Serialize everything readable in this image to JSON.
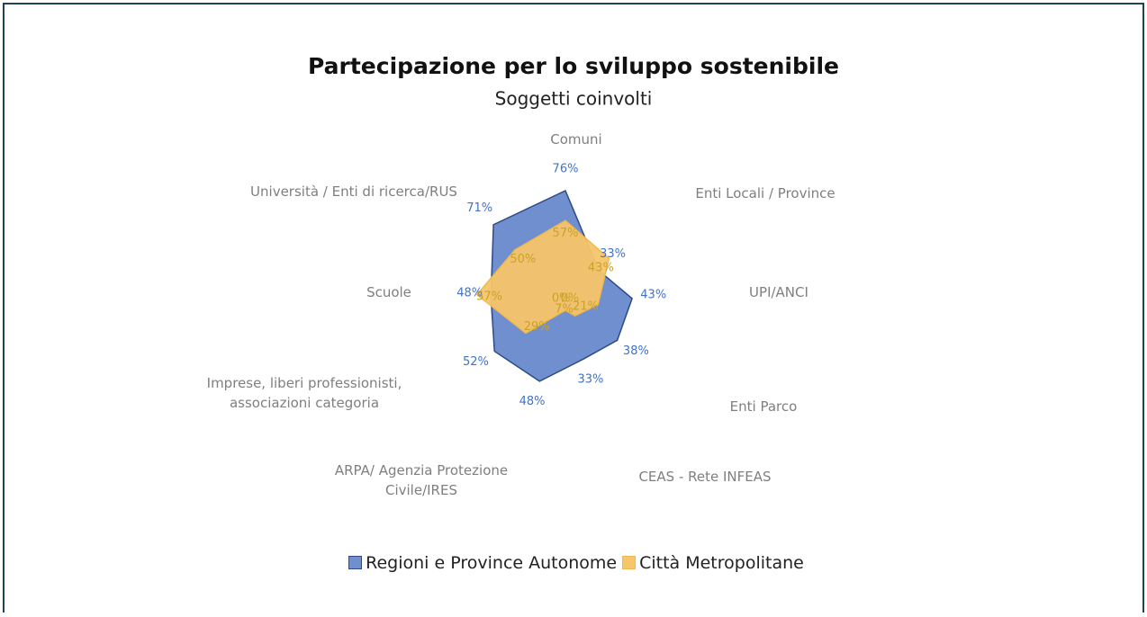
{
  "chart_data": {
    "type": "radar",
    "title": "Partecipazione per lo sviluppo sostenibile",
    "subtitle": "Soggetti coinvolti",
    "categories": [
      "Comuni",
      "Enti Locali / Province",
      "UPI/ANCI",
      "Enti Parco",
      "CEAS - Rete INFEAS",
      "ARPA/ Agenzia Protezione Civile/IRES",
      "Imprese, liberi professionisti, associazioni categoria",
      "Scuole",
      "Università / Enti di ricerca/RUS"
    ],
    "rlim": [
      0,
      100
    ],
    "series": [
      {
        "name": "Regioni  e Province Autonome",
        "color": "#4472c4",
        "fill": "#6f8fcf",
        "stroke": "#2f4a86",
        "values": [
          76,
          33,
          43,
          38,
          33,
          48,
          52,
          48,
          71
        ],
        "value_labels": [
          "76%",
          "33%",
          "43%",
          "38%",
          "33%",
          "48%",
          "52%",
          "48%",
          "71%"
        ]
      },
      {
        "name": "Città Metropolitane",
        "color": "#c9a227",
        "fill": "#f7c56a",
        "stroke": "#f2b84b",
        "values": [
          57,
          43,
          21,
          7,
          0,
          0,
          29,
          57,
          50
        ],
        "value_labels": [
          "57%",
          "43%",
          "21%",
          "7%",
          "0%",
          "0%",
          "29%",
          "57%",
          "50%"
        ]
      }
    ],
    "legend": "bottom"
  }
}
